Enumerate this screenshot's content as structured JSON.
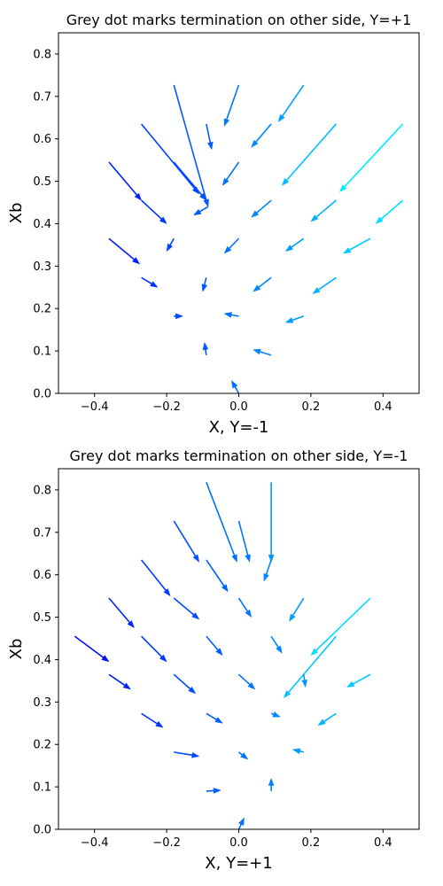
{
  "chart_data": [
    {
      "type": "quiver",
      "title": "Grey dot marks termination on other side, Y=+1",
      "xlabel": "X, Y=-1",
      "ylabel": "Xb",
      "xlim": [
        -0.5,
        0.5
      ],
      "ylim": [
        0.0,
        0.85
      ],
      "xticks": [
        -0.4,
        -0.2,
        0.0,
        0.2,
        0.4
      ],
      "yticks": [
        0.0,
        0.1,
        0.2,
        0.3,
        0.4,
        0.5,
        0.6,
        0.7,
        0.8
      ],
      "xtick_labels": [
        "−0.4",
        "−0.2",
        "0.0",
        "0.2",
        "0.4"
      ],
      "ytick_labels": [
        "0.0",
        "0.1",
        "0.2",
        "0.3",
        "0.4",
        "0.5",
        "0.6",
        "0.7",
        "0.8"
      ],
      "colormap": [
        "#0000ff",
        "#00ffff"
      ],
      "arrows": [
        {
          "x0": -0.18,
          "y0": 0.727,
          "x1": -0.085,
          "y1": 0.44
        },
        {
          "x0": -0.09,
          "y0": 0.635,
          "x1": -0.075,
          "y1": 0.575
        },
        {
          "x0": 0.0,
          "y0": 0.727,
          "x1": -0.04,
          "y1": 0.63
        },
        {
          "x0": 0.18,
          "y0": 0.727,
          "x1": 0.11,
          "y1": 0.64
        },
        {
          "x0": -0.27,
          "y0": 0.635,
          "x1": -0.11,
          "y1": 0.47
        },
        {
          "x0": 0.09,
          "y0": 0.635,
          "x1": 0.035,
          "y1": 0.58
        },
        {
          "x0": 0.27,
          "y0": 0.635,
          "x1": 0.12,
          "y1": 0.49
        },
        {
          "x0": 0.455,
          "y0": 0.635,
          "x1": 0.28,
          "y1": 0.475
        },
        {
          "x0": -0.36,
          "y0": 0.545,
          "x1": -0.27,
          "y1": 0.455
        },
        {
          "x0": -0.27,
          "y0": 0.455,
          "x1": -0.2,
          "y1": 0.4
        },
        {
          "x0": -0.18,
          "y0": 0.545,
          "x1": -0.09,
          "y1": 0.455
        },
        {
          "x0": -0.085,
          "y0": 0.44,
          "x1": -0.125,
          "y1": 0.42
        },
        {
          "x0": 0.0,
          "y0": 0.545,
          "x1": -0.045,
          "y1": 0.49
        },
        {
          "x0": 0.09,
          "y0": 0.455,
          "x1": 0.035,
          "y1": 0.415
        },
        {
          "x0": 0.27,
          "y0": 0.455,
          "x1": 0.2,
          "y1": 0.405
        },
        {
          "x0": 0.455,
          "y0": 0.455,
          "x1": 0.38,
          "y1": 0.4
        },
        {
          "x0": -0.36,
          "y0": 0.365,
          "x1": -0.275,
          "y1": 0.305
        },
        {
          "x0": -0.18,
          "y0": 0.365,
          "x1": -0.2,
          "y1": 0.335
        },
        {
          "x0": 0.0,
          "y0": 0.365,
          "x1": -0.04,
          "y1": 0.33
        },
        {
          "x0": 0.18,
          "y0": 0.365,
          "x1": 0.13,
          "y1": 0.335
        },
        {
          "x0": 0.365,
          "y0": 0.365,
          "x1": 0.29,
          "y1": 0.33
        },
        {
          "x0": -0.27,
          "y0": 0.273,
          "x1": -0.225,
          "y1": 0.25
        },
        {
          "x0": -0.09,
          "y0": 0.273,
          "x1": -0.1,
          "y1": 0.24
        },
        {
          "x0": 0.09,
          "y0": 0.273,
          "x1": 0.04,
          "y1": 0.24
        },
        {
          "x0": 0.27,
          "y0": 0.273,
          "x1": 0.205,
          "y1": 0.235
        },
        {
          "x0": -0.18,
          "y0": 0.182,
          "x1": -0.155,
          "y1": 0.182
        },
        {
          "x0": 0.0,
          "y0": 0.182,
          "x1": -0.04,
          "y1": 0.188
        },
        {
          "x0": 0.18,
          "y0": 0.182,
          "x1": 0.13,
          "y1": 0.167
        },
        {
          "x0": -0.09,
          "y0": 0.09,
          "x1": -0.095,
          "y1": 0.12
        },
        {
          "x0": 0.09,
          "y0": 0.09,
          "x1": 0.04,
          "y1": 0.103
        },
        {
          "x0": 0.0,
          "y0": 0.0,
          "x1": -0.02,
          "y1": 0.03
        }
      ]
    },
    {
      "type": "quiver",
      "title": "Grey dot marks termination on other side, Y=-1",
      "xlabel": "X, Y=+1",
      "ylabel": "Xb",
      "xlim": [
        -0.5,
        0.5
      ],
      "ylim": [
        0.0,
        0.85
      ],
      "xticks": [
        -0.4,
        -0.2,
        0.0,
        0.2,
        0.4
      ],
      "yticks": [
        0.0,
        0.1,
        0.2,
        0.3,
        0.4,
        0.5,
        0.6,
        0.7,
        0.8
      ],
      "xtick_labels": [
        "−0.4",
        "−0.2",
        "0.0",
        "0.2",
        "0.4"
      ],
      "ytick_labels": [
        "0.0",
        "0.1",
        "0.2",
        "0.3",
        "0.4",
        "0.5",
        "0.6",
        "0.7",
        "0.8"
      ],
      "colormap": [
        "#0000ff",
        "#00ffff"
      ],
      "arrows": [
        {
          "x0": -0.09,
          "y0": 0.818,
          "x1": -0.005,
          "y1": 0.63
        },
        {
          "x0": 0.09,
          "y0": 0.818,
          "x1": 0.09,
          "y1": 0.63
        },
        {
          "x0": -0.18,
          "y0": 0.727,
          "x1": -0.11,
          "y1": 0.63
        },
        {
          "x0": 0.0,
          "y0": 0.727,
          "x1": 0.03,
          "y1": 0.63
        },
        {
          "x0": -0.27,
          "y0": 0.635,
          "x1": -0.19,
          "y1": 0.55
        },
        {
          "x0": -0.09,
          "y0": 0.635,
          "x1": -0.03,
          "y1": 0.56
        },
        {
          "x0": 0.09,
          "y0": 0.635,
          "x1": 0.07,
          "y1": 0.585
        },
        {
          "x0": -0.36,
          "y0": 0.545,
          "x1": -0.29,
          "y1": 0.475
        },
        {
          "x0": -0.18,
          "y0": 0.545,
          "x1": -0.11,
          "y1": 0.495
        },
        {
          "x0": 0.0,
          "y0": 0.545,
          "x1": 0.035,
          "y1": 0.5
        },
        {
          "x0": 0.18,
          "y0": 0.545,
          "x1": 0.14,
          "y1": 0.49
        },
        {
          "x0": 0.365,
          "y0": 0.545,
          "x1": 0.2,
          "y1": 0.41
        },
        {
          "x0": -0.455,
          "y0": 0.455,
          "x1": -0.36,
          "y1": 0.395
        },
        {
          "x0": -0.27,
          "y0": 0.455,
          "x1": -0.2,
          "y1": 0.395
        },
        {
          "x0": -0.09,
          "y0": 0.455,
          "x1": -0.045,
          "y1": 0.41
        },
        {
          "x0": 0.09,
          "y0": 0.455,
          "x1": 0.12,
          "y1": 0.415
        },
        {
          "x0": 0.27,
          "y0": 0.455,
          "x1": 0.125,
          "y1": 0.31
        },
        {
          "x0": -0.36,
          "y0": 0.365,
          "x1": -0.3,
          "y1": 0.33
        },
        {
          "x0": -0.18,
          "y0": 0.365,
          "x1": -0.12,
          "y1": 0.32
        },
        {
          "x0": 0.0,
          "y0": 0.365,
          "x1": 0.045,
          "y1": 0.33
        },
        {
          "x0": 0.18,
          "y0": 0.365,
          "x1": 0.185,
          "y1": 0.335
        },
        {
          "x0": 0.365,
          "y0": 0.365,
          "x1": 0.3,
          "y1": 0.335
        },
        {
          "x0": -0.27,
          "y0": 0.273,
          "x1": -0.21,
          "y1": 0.24
        },
        {
          "x0": -0.09,
          "y0": 0.273,
          "x1": -0.045,
          "y1": 0.25
        },
        {
          "x0": 0.09,
          "y0": 0.273,
          "x1": 0.115,
          "y1": 0.265
        },
        {
          "x0": 0.27,
          "y0": 0.273,
          "x1": 0.22,
          "y1": 0.245
        },
        {
          "x0": -0.18,
          "y0": 0.182,
          "x1": -0.11,
          "y1": 0.172
        },
        {
          "x0": 0.0,
          "y0": 0.182,
          "x1": 0.025,
          "y1": 0.165
        },
        {
          "x0": 0.18,
          "y0": 0.182,
          "x1": 0.15,
          "y1": 0.188
        },
        {
          "x0": -0.09,
          "y0": 0.09,
          "x1": -0.05,
          "y1": 0.092
        },
        {
          "x0": 0.09,
          "y0": 0.09,
          "x1": 0.09,
          "y1": 0.12
        },
        {
          "x0": 0.0,
          "y0": 0.0,
          "x1": 0.015,
          "y1": 0.027
        }
      ]
    }
  ]
}
